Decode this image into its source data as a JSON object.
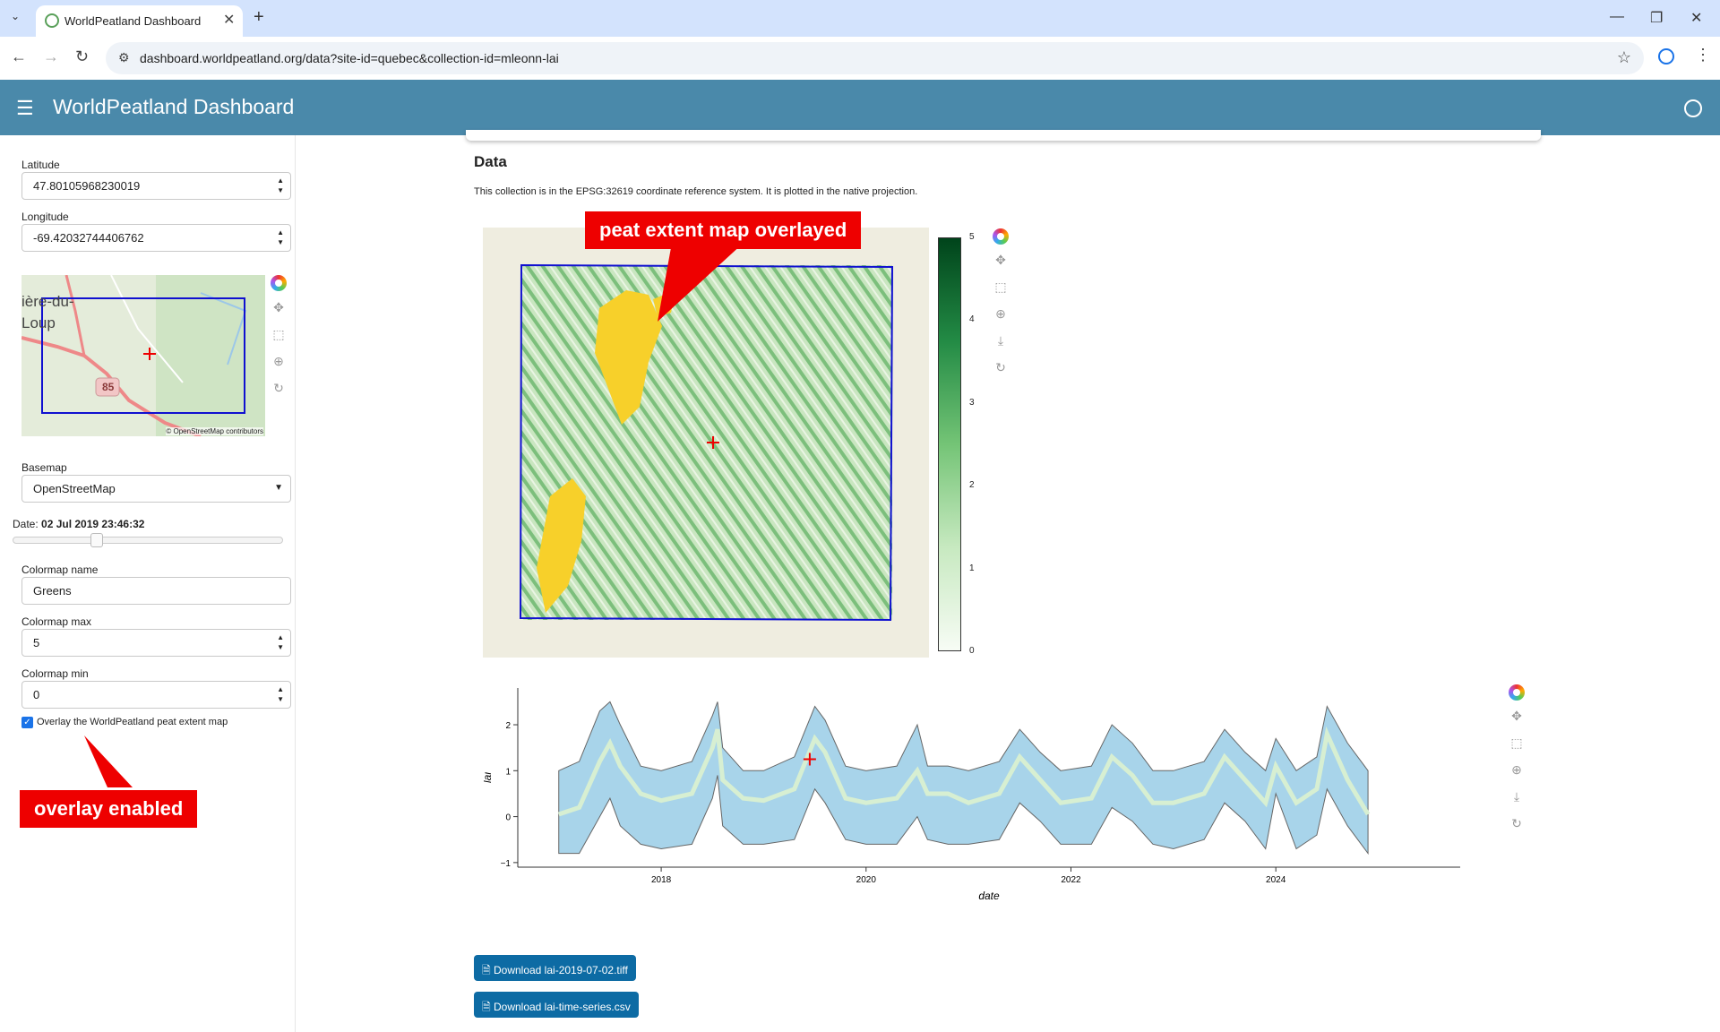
{
  "browser": {
    "tab_title": "WorldPeatland Dashboard",
    "url": "dashboard.worldpeatland.org/data?site-id=quebec&collection-id=mleonn-lai"
  },
  "app": {
    "title": "WorldPeatland Dashboard"
  },
  "sidebar": {
    "latitude_label": "Latitude",
    "latitude_value": "47.80105968230019",
    "longitude_label": "Longitude",
    "longitude_value": "-69.42032744406762",
    "mini_map": {
      "place_label": "ière-du-Loup",
      "road_shield": "85",
      "attribution": "© OpenStreetMap contributors"
    },
    "basemap_label": "Basemap",
    "basemap_value": "OpenStreetMap",
    "date_label": "Date: ",
    "date_value": "02 Jul 2019 23:46:32",
    "colormap_name_label": "Colormap name",
    "colormap_name_value": "Greens",
    "colormap_max_label": "Colormap max",
    "colormap_max_value": "5",
    "colormap_min_label": "Colormap min",
    "colormap_min_value": "0",
    "overlay_label": "Overlay the WorldPeatland peat extent map",
    "overlay_checked": true
  },
  "annotations": {
    "peat_callout": "peat extent map overlayed",
    "overlay_callout": "overlay enabled"
  },
  "main": {
    "heading": "Data",
    "description": "This collection is in the EPSG:32619 coordinate reference system. It is plotted in the native projection.",
    "download_tiff": "Download lai-2019-07-02.tiff",
    "download_csv": "Download lai-time-series.csv"
  },
  "colors": {
    "header": "#4a89aa",
    "button": "#0d6ba4",
    "callout": "#ee0000",
    "band_fill": "#a8d4ea",
    "peat_overlay": "#f7d02a"
  },
  "chart_data": [
    {
      "type": "heatmap",
      "colormap": "Greens",
      "colorbar_ticks": [
        "0",
        "1",
        "2",
        "3",
        "4",
        "5"
      ],
      "crs": "EPSG:32619"
    },
    {
      "type": "area",
      "xlabel": "date",
      "ylabel": "lai",
      "x_ticks": [
        "2018",
        "2020",
        "2022",
        "2024"
      ],
      "y_ticks": [
        "−1",
        "0",
        "1",
        "2"
      ],
      "ylim": [
        -1.1,
        2.8
      ],
      "xlim": [
        2016.6,
        2025.8
      ],
      "series": [
        {
          "x": [
            2017.0,
            2017.2,
            2017.4,
            2017.5,
            2017.6,
            2017.8,
            2018.0,
            2018.3,
            2018.5,
            2018.55,
            2018.6,
            2018.8,
            2019.0,
            2019.3,
            2019.5,
            2019.6,
            2019.8,
            2020.0,
            2020.3,
            2020.5,
            2020.6,
            2020.8,
            2021.0,
            2021.3,
            2021.5,
            2021.7,
            2021.9,
            2022.2,
            2022.4,
            2022.6,
            2022.8,
            2023.0,
            2023.3,
            2023.5,
            2023.7,
            2023.9,
            2024.0,
            2024.2,
            2024.4,
            2024.5,
            2024.7,
            2024.9
          ],
          "mean": [
            0.05,
            0.2,
            1.2,
            1.6,
            1.1,
            0.5,
            0.35,
            0.5,
            1.5,
            1.9,
            0.8,
            0.4,
            0.35,
            0.6,
            1.7,
            1.4,
            0.4,
            0.3,
            0.4,
            1.0,
            0.5,
            0.5,
            0.3,
            0.5,
            1.3,
            0.8,
            0.3,
            0.4,
            1.3,
            0.9,
            0.3,
            0.3,
            0.5,
            1.3,
            0.8,
            0.3,
            1.1,
            0.3,
            0.6,
            1.8,
            0.8,
            0.05
          ],
          "upper": [
            1.0,
            1.2,
            2.3,
            2.5,
            2.0,
            1.1,
            1.0,
            1.2,
            2.2,
            2.5,
            1.5,
            1.0,
            1.0,
            1.3,
            2.4,
            2.1,
            1.1,
            1.0,
            1.1,
            2.0,
            1.1,
            1.1,
            1.0,
            1.2,
            1.9,
            1.4,
            1.0,
            1.1,
            2.0,
            1.6,
            1.0,
            1.0,
            1.2,
            1.9,
            1.4,
            1.0,
            1.7,
            1.0,
            1.3,
            2.4,
            1.6,
            1.0
          ],
          "lower": [
            -0.8,
            -0.8,
            0.0,
            0.4,
            -0.2,
            -0.6,
            -0.7,
            -0.6,
            0.4,
            0.9,
            -0.2,
            -0.6,
            -0.6,
            -0.5,
            0.6,
            0.3,
            -0.5,
            -0.6,
            -0.6,
            0.0,
            -0.5,
            -0.6,
            -0.6,
            -0.5,
            0.3,
            -0.1,
            -0.6,
            -0.6,
            0.2,
            -0.1,
            -0.6,
            -0.7,
            -0.5,
            0.3,
            -0.1,
            -0.7,
            0.5,
            -0.7,
            -0.4,
            0.6,
            -0.2,
            -0.8
          ]
        }
      ],
      "marker": {
        "x": 2019.45,
        "y": 1.25
      }
    }
  ]
}
